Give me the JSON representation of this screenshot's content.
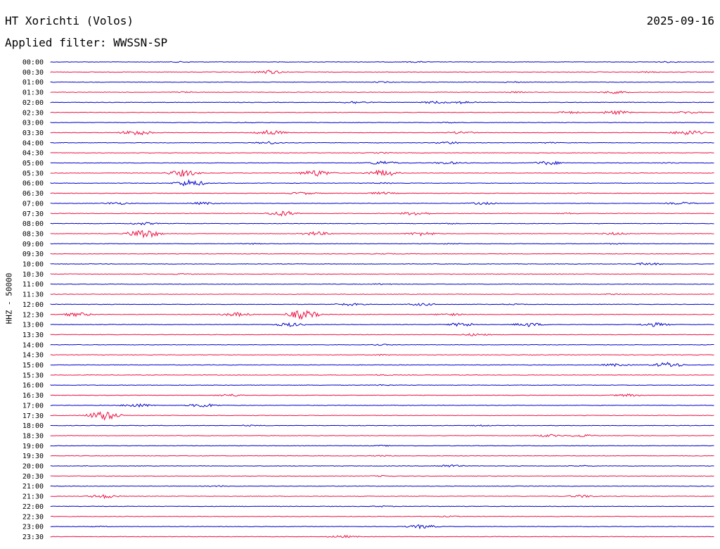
{
  "header": {
    "station": "HT Xorichti (Volos)",
    "date": "2025-09-16",
    "filter": "Applied filter: WWSSN-SP"
  },
  "axis_label": "HHZ - 50000",
  "colors": {
    "even": "#0000cc",
    "odd": "#ee1144"
  },
  "traces": [
    {
      "time": "00:00",
      "activity": [
        [
          0.2,
          1
        ],
        [
          0.55,
          1
        ],
        [
          0.93,
          1
        ]
      ]
    },
    {
      "time": "00:30",
      "activity": [
        [
          0.33,
          3
        ],
        [
          0.9,
          1
        ]
      ]
    },
    {
      "time": "01:00",
      "activity": [
        [
          0.5,
          1
        ],
        [
          0.7,
          1
        ]
      ]
    },
    {
      "time": "01:30",
      "activity": [
        [
          0.2,
          1
        ],
        [
          0.7,
          1
        ],
        [
          0.85,
          2
        ]
      ]
    },
    {
      "time": "02:00",
      "activity": [
        [
          0.46,
          2
        ],
        [
          0.58,
          2
        ],
        [
          0.62,
          2
        ]
      ]
    },
    {
      "time": "02:30",
      "activity": [
        [
          0.78,
          2
        ],
        [
          0.85,
          3
        ],
        [
          0.96,
          2
        ]
      ]
    },
    {
      "time": "03:00",
      "activity": [
        [
          0.3,
          1
        ],
        [
          0.6,
          1
        ]
      ]
    },
    {
      "time": "03:30",
      "activity": [
        [
          0.13,
          4
        ],
        [
          0.33,
          4
        ],
        [
          0.62,
          2
        ],
        [
          0.96,
          4
        ]
      ]
    },
    {
      "time": "04:00",
      "activity": [
        [
          0.33,
          2
        ],
        [
          0.6,
          2
        ],
        [
          0.75,
          1
        ]
      ]
    },
    {
      "time": "04:30",
      "activity": [
        [
          0.5,
          1
        ]
      ]
    },
    {
      "time": "05:00",
      "activity": [
        [
          0.5,
          3
        ],
        [
          0.6,
          2
        ],
        [
          0.75,
          3
        ],
        [
          0.93,
          1
        ]
      ]
    },
    {
      "time": "05:30",
      "activity": [
        [
          0.2,
          5
        ],
        [
          0.4,
          5
        ],
        [
          0.5,
          5
        ]
      ]
    },
    {
      "time": "06:00",
      "activity": [
        [
          0.21,
          5
        ],
        [
          0.5,
          1
        ]
      ]
    },
    {
      "time": "06:30",
      "activity": [
        [
          0.38,
          2
        ],
        [
          0.5,
          2
        ],
        [
          0.8,
          1
        ]
      ]
    },
    {
      "time": "07:00",
      "activity": [
        [
          0.1,
          2
        ],
        [
          0.23,
          2
        ],
        [
          0.65,
          2
        ],
        [
          0.95,
          2
        ]
      ]
    },
    {
      "time": "07:30",
      "activity": [
        [
          0.35,
          4
        ],
        [
          0.55,
          3
        ],
        [
          0.78,
          1
        ]
      ]
    },
    {
      "time": "08:00",
      "activity": [
        [
          0.14,
          2
        ],
        [
          0.6,
          1
        ]
      ]
    },
    {
      "time": "08:30",
      "activity": [
        [
          0.14,
          7
        ],
        [
          0.4,
          3
        ],
        [
          0.56,
          3
        ],
        [
          0.85,
          2
        ]
      ]
    },
    {
      "time": "09:00",
      "activity": [
        [
          0.3,
          1
        ],
        [
          0.6,
          1
        ],
        [
          0.85,
          1
        ]
      ]
    },
    {
      "time": "09:30",
      "activity": [
        [
          0.5,
          1
        ]
      ]
    },
    {
      "time": "10:00",
      "activity": [
        [
          0.9,
          2
        ]
      ]
    },
    {
      "time": "10:30",
      "activity": [
        [
          0.2,
          1
        ]
      ]
    },
    {
      "time": "11:00",
      "activity": [
        [
          0.5,
          1
        ]
      ]
    },
    {
      "time": "11:30",
      "activity": [
        [
          0.85,
          1
        ]
      ]
    },
    {
      "time": "12:00",
      "activity": [
        [
          0.45,
          2
        ],
        [
          0.56,
          2
        ],
        [
          0.7,
          1
        ]
      ]
    },
    {
      "time": "12:30",
      "activity": [
        [
          0.04,
          3
        ],
        [
          0.28,
          3
        ],
        [
          0.38,
          7
        ],
        [
          0.6,
          2
        ]
      ]
    },
    {
      "time": "13:00",
      "activity": [
        [
          0.36,
          3
        ],
        [
          0.62,
          3
        ],
        [
          0.72,
          3
        ],
        [
          0.91,
          3
        ]
      ]
    },
    {
      "time": "13:30",
      "activity": [
        [
          0.64,
          2
        ]
      ]
    },
    {
      "time": "14:00",
      "activity": [
        [
          0.5,
          1
        ]
      ]
    },
    {
      "time": "14:30",
      "activity": [
        [
          0.5,
          1
        ]
      ]
    },
    {
      "time": "15:00",
      "activity": [
        [
          0.85,
          2
        ],
        [
          0.93,
          4
        ]
      ]
    },
    {
      "time": "15:30",
      "activity": [
        [
          0.5,
          1
        ]
      ]
    },
    {
      "time": "16:00",
      "activity": [
        [
          0.5,
          1
        ]
      ]
    },
    {
      "time": "16:30",
      "activity": [
        [
          0.27,
          2
        ],
        [
          0.87,
          2
        ]
      ]
    },
    {
      "time": "17:00",
      "activity": [
        [
          0.13,
          3
        ],
        [
          0.23,
          3
        ]
      ]
    },
    {
      "time": "17:30",
      "activity": [
        [
          0.08,
          7
        ]
      ]
    },
    {
      "time": "18:00",
      "activity": [
        [
          0.3,
          1
        ],
        [
          0.65,
          1
        ]
      ]
    },
    {
      "time": "18:30",
      "activity": [
        [
          0.75,
          2
        ],
        [
          0.8,
          2
        ]
      ]
    },
    {
      "time": "19:00",
      "activity": [
        [
          0.5,
          1
        ]
      ]
    },
    {
      "time": "19:30",
      "activity": [
        [
          0.5,
          1
        ]
      ]
    },
    {
      "time": "20:00",
      "activity": [
        [
          0.6,
          2
        ],
        [
          0.8,
          1
        ]
      ]
    },
    {
      "time": "20:30",
      "activity": [
        [
          0.5,
          1
        ]
      ]
    },
    {
      "time": "21:00",
      "activity": [
        [
          0.25,
          1
        ]
      ]
    },
    {
      "time": "21:30",
      "activity": [
        [
          0.08,
          3
        ],
        [
          0.8,
          2
        ]
      ]
    },
    {
      "time": "22:00",
      "activity": [
        [
          0.5,
          1
        ]
      ]
    },
    {
      "time": "22:30",
      "activity": [
        [
          0.6,
          1
        ]
      ]
    },
    {
      "time": "23:00",
      "activity": [
        [
          0.56,
          3
        ],
        [
          0.07,
          1
        ]
      ]
    },
    {
      "time": "23:30",
      "activity": [
        [
          0.44,
          2
        ]
      ]
    }
  ]
}
